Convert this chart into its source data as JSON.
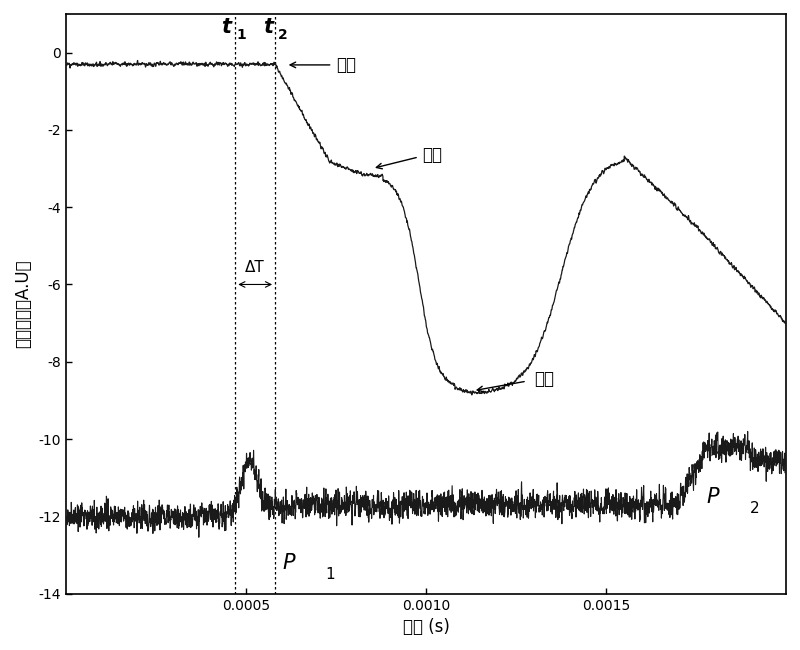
{
  "title": "",
  "xlabel": "时间 (s)",
  "ylabel": "发射强度（A.U）",
  "xlim": [
    0.0,
    0.002
  ],
  "ylim": [
    -14,
    1
  ],
  "xticks": [
    0.0005,
    0.001,
    0.0015
  ],
  "yticks": [
    0,
    -2,
    -4,
    -6,
    -8,
    -10,
    -12,
    -14
  ],
  "t1": 0.00047,
  "t2": 0.00058,
  "bg_color": "#ffffff",
  "line_color": "#1a1a1a",
  "annot_qidian": "起点",
  "annot_niudian": "拐点",
  "annot_fengjian": "峰値",
  "annot_deltaT": "ΔT",
  "annot_P1": "P",
  "annot_P1_sub": "1",
  "annot_P2": "P",
  "annot_P2_sub": "2",
  "annot_t1": "t",
  "annot_t1_sub": "1",
  "annot_t2": "t",
  "annot_t2_sub": "2"
}
